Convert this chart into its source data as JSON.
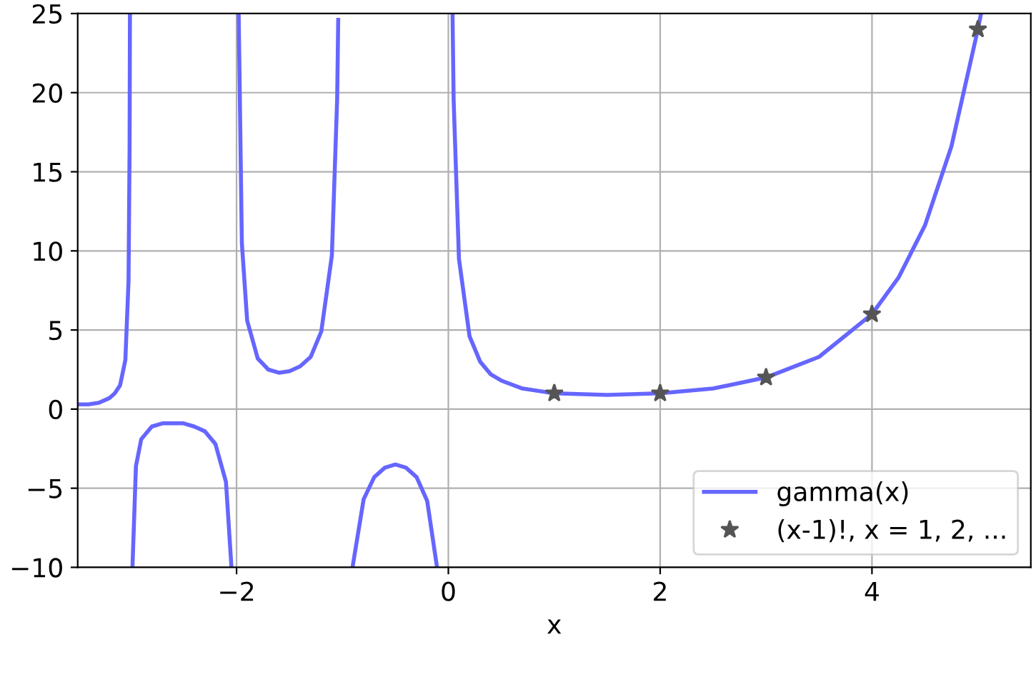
{
  "chart_data": {
    "type": "line",
    "xlabel": "x",
    "xlim": [
      -3.5,
      5.5
    ],
    "ylim": [
      -10,
      25
    ],
    "xticks": [
      -2,
      0,
      2,
      4
    ],
    "yticks": [
      -10,
      -5,
      0,
      5,
      10,
      15,
      20,
      25
    ],
    "grid": true,
    "legend": "bottom right",
    "series": [
      {
        "name": "gamma(x)",
        "color": "#6666ff",
        "line_style": "solid",
        "x": [
          -3.5,
          -3.4,
          -3.3,
          -3.2,
          -3.15,
          -3.1,
          -3.05,
          -3.02,
          -3.01,
          -3.0067,
          -3.0,
          -2.983,
          -2.95,
          -2.9,
          -2.8,
          -2.7,
          -2.6,
          -2.5,
          -2.4,
          -2.3,
          -2.2,
          -2.1,
          -2.048,
          -2.0,
          -1.98,
          -1.95,
          -1.9,
          -1.8,
          -1.7,
          -1.6,
          -1.5,
          -1.4,
          -1.3,
          -1.2,
          -1.1,
          -1.05,
          -1.04,
          -1.0,
          -0.905,
          -0.8,
          -0.7,
          -0.6,
          -0.5,
          -0.4,
          -0.3,
          -0.2,
          -0.107,
          0.0,
          0.0393,
          0.05,
          0.1,
          0.2,
          0.3,
          0.4,
          0.5,
          0.7,
          1.0,
          1.5,
          2.0,
          2.5,
          3.0,
          3.5,
          4.0,
          4.25,
          4.5,
          4.75,
          5.0,
          5.03
        ],
        "values": [
          0.3,
          0.3,
          0.4,
          0.7,
          1,
          1.5,
          3.1,
          8.1,
          16.5,
          25,
          null,
          -10,
          -3.6,
          -1.9,
          -1.1,
          -0.9,
          -0.9,
          -0.9,
          -1.1,
          -1.4,
          -2.2,
          -4.6,
          -10,
          null,
          25,
          10.5,
          5.6,
          3.2,
          2.5,
          2.3,
          2.4,
          2.7,
          3.3,
          4.9,
          9.7,
          19.6,
          24.6,
          null,
          -10,
          -5.7,
          -4.3,
          -3.7,
          -3.5,
          -3.7,
          -4.3,
          -5.8,
          -10,
          null,
          25,
          19.5,
          9.5,
          4.6,
          3,
          2.2,
          1.8,
          1.3,
          1,
          0.9,
          1,
          1.3,
          2,
          3.3,
          6,
          8.3,
          11.6,
          16.6,
          24,
          25
        ]
      },
      {
        "name": "(x-1)!, x = 1, 2, ...",
        "type": "scatter",
        "color": "#555555",
        "marker": "star",
        "x": [
          1,
          2,
          3,
          4,
          5
        ],
        "values": [
          1,
          1,
          2,
          6,
          24
        ]
      }
    ]
  }
}
